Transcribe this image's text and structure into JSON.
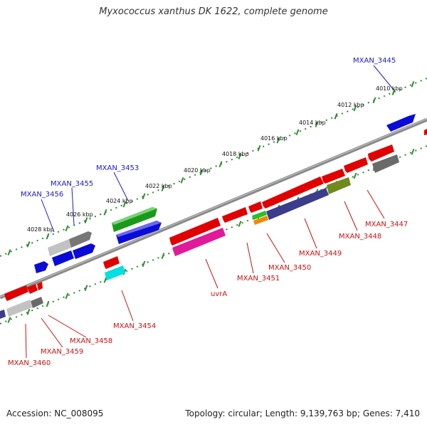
{
  "title": "Myxococcus xanthus DK 1622, complete genome",
  "footer": {
    "accession": "Accession: NC_008095",
    "topology": "Topology: circular; Length: 9,139,763 bp; Genes: 7,410"
  },
  "colors": {
    "backbone": "#8c8c8c",
    "tick_track": "#2e8b2e",
    "forward_label": "#1a1acc",
    "reverse_label": "#cc1111"
  },
  "kbp_labels": [
    "4010 kbp",
    "4012 kbp",
    "4014 kbp",
    "4016 kbp",
    "4018 kbp",
    "4020 kbp",
    "4022 kbp",
    "4024 kbp",
    "4026 kbp",
    "4028 kbp"
  ],
  "forward_gene_labels": [
    "MXAN_3445",
    "MXAN_3453",
    "MXAN_3455",
    "MXAN_3456"
  ],
  "reverse_gene_labels": [
    "MXAN_3447",
    "MXAN_3448",
    "MXAN_3449",
    "MXAN_3450",
    "MXAN_3451",
    "uvrA",
    "MXAN_3454",
    "MXAN_3458",
    "MXAN_3459",
    "MXAN_3460"
  ]
}
